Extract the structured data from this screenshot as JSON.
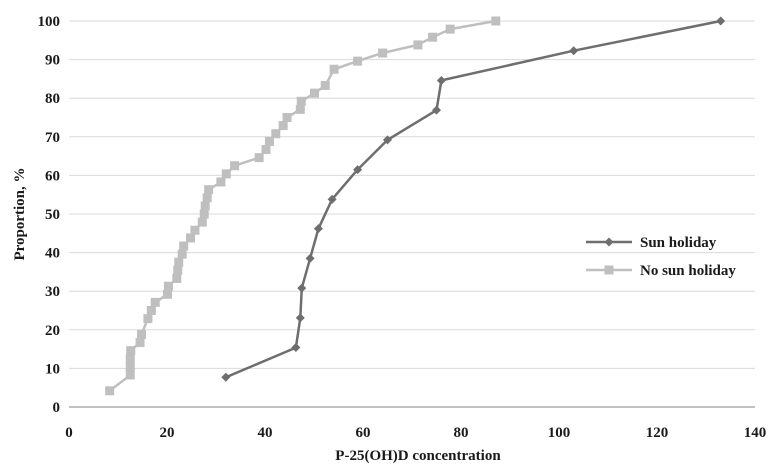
{
  "chart_data": {
    "type": "line",
    "xlabel": "P-25(OH)D  concentration",
    "ylabel": "Proportion, %",
    "xlim": [
      0,
      140
    ],
    "ylim": [
      0,
      100
    ],
    "xticks": [
      "0",
      "20",
      "40",
      "60",
      "80",
      "100",
      "120",
      "140"
    ],
    "yticks": [
      "0",
      "10",
      "20",
      "30",
      "40",
      "50",
      "60",
      "70",
      "80",
      "90",
      "100"
    ],
    "grid": "horizontal",
    "legend_position": "right",
    "series": [
      {
        "name": "Sun holiday",
        "color": "#6e6e6e",
        "marker": "diamond",
        "points": [
          [
            32,
            7.7
          ],
          [
            46.3,
            15.4
          ],
          [
            47.2,
            23.1
          ],
          [
            47.5,
            30.8
          ],
          [
            49.2,
            38.5
          ],
          [
            50.9,
            46.2
          ],
          [
            53.7,
            53.8
          ],
          [
            58.9,
            61.5
          ],
          [
            65,
            69.2
          ],
          [
            75,
            76.9
          ],
          [
            76,
            84.6
          ],
          [
            103,
            92.3
          ],
          [
            133,
            100
          ]
        ]
      },
      {
        "name": "No sun holiday",
        "color": "#bfbfbf",
        "marker": "square",
        "points": [
          [
            8.3,
            4.2
          ],
          [
            12.5,
            8.3
          ],
          [
            12.5,
            10.4
          ],
          [
            12.5,
            12.5
          ],
          [
            12.6,
            14.6
          ],
          [
            14.5,
            16.7
          ],
          [
            14.8,
            18.8
          ],
          [
            16.1,
            22.9
          ],
          [
            16.8,
            25
          ],
          [
            17.6,
            27.1
          ],
          [
            20.1,
            29.2
          ],
          [
            20.3,
            31.3
          ],
          [
            22,
            33.3
          ],
          [
            22.2,
            35.4
          ],
          [
            22.4,
            37.5
          ],
          [
            23.1,
            39.6
          ],
          [
            23.4,
            41.7
          ],
          [
            24.8,
            43.8
          ],
          [
            25.7,
            45.8
          ],
          [
            27.2,
            47.9
          ],
          [
            27.6,
            50
          ],
          [
            27.8,
            52.1
          ],
          [
            28.2,
            54.2
          ],
          [
            28.5,
            56.3
          ],
          [
            31,
            58.3
          ],
          [
            32.1,
            60.4
          ],
          [
            33.8,
            62.5
          ],
          [
            38.8,
            64.6
          ],
          [
            40.2,
            66.7
          ],
          [
            40.9,
            68.8
          ],
          [
            42.2,
            70.8
          ],
          [
            43.7,
            72.9
          ],
          [
            44.5,
            75
          ],
          [
            47.2,
            77.1
          ],
          [
            47.4,
            79.2
          ],
          [
            50.1,
            81.3
          ],
          [
            52.3,
            83.3
          ],
          [
            54.1,
            87.5
          ],
          [
            58.9,
            89.6
          ],
          [
            64,
            91.7
          ],
          [
            71.2,
            93.8
          ],
          [
            74.2,
            95.8
          ],
          [
            77.8,
            97.9
          ],
          [
            87.1,
            100
          ]
        ]
      }
    ]
  }
}
